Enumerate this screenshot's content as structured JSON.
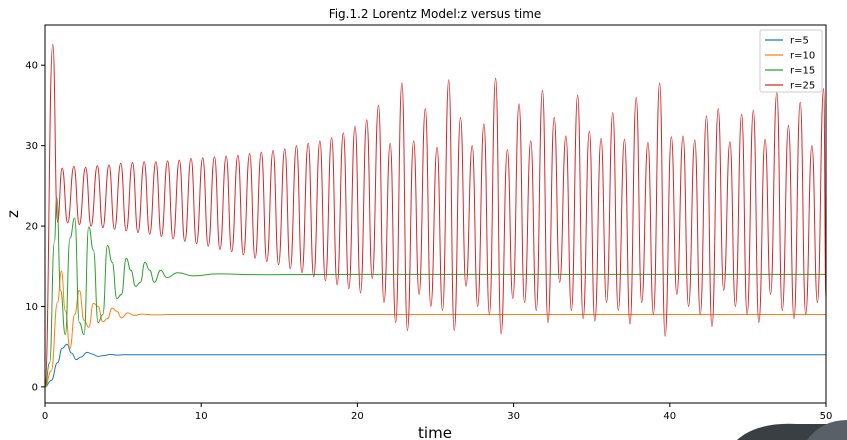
{
  "chart_data": {
    "type": "line",
    "title": "Fig.1.2 Lorentz Model:z versus time",
    "xlabel": "time",
    "ylabel": "z",
    "xlim": [
      0,
      50
    ],
    "ylim": [
      -2,
      45
    ],
    "xticks": [
      "0",
      "10",
      "20",
      "30",
      "40",
      "50"
    ],
    "yticks": [
      "0",
      "10",
      "20",
      "30",
      "40"
    ],
    "legend_position": "top-right",
    "grid": false,
    "series": [
      {
        "name": "r=5",
        "color": "#1f77b4",
        "x": [
          0,
          0.4,
          0.8,
          1.1,
          1.4,
          1.7,
          2.0,
          2.3,
          2.7,
          3.0,
          3.4,
          3.8,
          4.2,
          4.6,
          5.0,
          6.0,
          8.0,
          10,
          20,
          30,
          40,
          50
        ],
        "values": [
          0,
          0.8,
          3.0,
          4.8,
          5.3,
          4.2,
          3.4,
          3.7,
          4.3,
          4.1,
          3.8,
          3.9,
          4.05,
          3.95,
          4.0,
          4.0,
          4.0,
          4.0,
          4.0,
          4.0,
          4.0,
          4.0
        ]
      },
      {
        "name": "r=10",
        "color": "#ff7f0e",
        "x": [
          0,
          0.4,
          0.8,
          1.05,
          1.3,
          1.6,
          1.9,
          2.2,
          2.5,
          2.8,
          3.1,
          3.4,
          3.7,
          4.0,
          4.3,
          4.6,
          4.9,
          5.3,
          5.7,
          6.2,
          7.0,
          8.0,
          10,
          20,
          30,
          40,
          50
        ],
        "values": [
          0,
          2.0,
          10.5,
          14.4,
          9.5,
          4.8,
          9.0,
          12.0,
          8.3,
          7.4,
          10.4,
          10.0,
          8.1,
          8.5,
          9.8,
          9.4,
          8.6,
          9.2,
          8.9,
          9.05,
          8.95,
          9.0,
          9.0,
          9.0,
          9.0,
          9.0,
          9.0
        ]
      },
      {
        "name": "r=15",
        "color": "#2ca02c",
        "x": [
          0,
          0.3,
          0.6,
          0.75,
          1.0,
          1.3,
          1.6,
          1.9,
          2.2,
          2.5,
          2.8,
          3.1,
          3.4,
          3.7,
          4.0,
          4.3,
          4.6,
          4.9,
          5.2,
          5.5,
          5.8,
          6.1,
          6.4,
          6.7,
          7.0,
          7.4,
          7.8,
          8.5,
          9.5,
          11,
          14,
          20,
          30,
          40,
          50
        ],
        "values": [
          0,
          3.0,
          18.0,
          23.5,
          12.0,
          6.5,
          18.5,
          21.0,
          8.0,
          6.5,
          19.9,
          17.0,
          8.0,
          9.0,
          17.6,
          15.5,
          11.0,
          11.5,
          16.0,
          14.5,
          12.5,
          13.0,
          15.5,
          14.5,
          13.0,
          14.5,
          13.6,
          14.2,
          13.8,
          14.05,
          13.95,
          14.0,
          14.0,
          14.0,
          14.0
        ]
      },
      {
        "name": "r=25",
        "color": "#d62728",
        "peaks_x": [
          0.5,
          1.1,
          1.85,
          2.6,
          3.35,
          4.1,
          4.85,
          5.6,
          6.35,
          7.1,
          7.85,
          8.6,
          9.35,
          10.1,
          10.85,
          11.6,
          12.35,
          13.1,
          13.85,
          14.6,
          15.35,
          16.1,
          16.85,
          17.6,
          18.35,
          19.1,
          19.85,
          20.6,
          21.35,
          22.1,
          22.85,
          23.6,
          24.35,
          25.1,
          25.85,
          26.6,
          27.35,
          28.1,
          28.85,
          29.6,
          30.35,
          31.1,
          31.85,
          32.6,
          33.35,
          34.1,
          34.85,
          35.6,
          36.35,
          37.1,
          37.85,
          38.6,
          39.35,
          40.1,
          40.85,
          41.6,
          42.35,
          43.1,
          43.85,
          44.6,
          45.35,
          46.1,
          46.85,
          47.6,
          48.35,
          49.1,
          49.85
        ],
        "peaks": [
          42.6,
          27.2,
          27.4,
          27.3,
          27.5,
          27.6,
          27.8,
          27.9,
          28.0,
          28.0,
          28.1,
          28.2,
          28.4,
          28.5,
          28.6,
          28.7,
          28.8,
          29.0,
          29.2,
          29.4,
          29.6,
          30.0,
          30.3,
          30.6,
          31.0,
          31.6,
          32.4,
          33.2,
          35.0,
          30.3,
          37.8,
          30.6,
          34.6,
          29.8,
          38.2,
          33.5,
          30.0,
          32.7,
          38.4,
          29.5,
          35.2,
          30.6,
          36.9,
          33.5,
          31.2,
          36.3,
          31.8,
          30.9,
          34.1,
          30.8,
          36.0,
          30.4,
          37.8,
          31.1,
          31.2,
          30.7,
          33.7,
          34.6,
          30.5,
          33.9,
          34.4,
          30.8,
          36.6,
          32.5,
          35.4,
          30.0,
          37.1
        ],
        "troughs_x": [
          0,
          0.8,
          1.45,
          2.2,
          2.95,
          3.7,
          4.45,
          5.2,
          5.95,
          6.7,
          7.45,
          8.2,
          8.95,
          9.7,
          10.45,
          11.2,
          11.95,
          12.7,
          13.45,
          14.2,
          14.95,
          15.7,
          16.45,
          17.2,
          17.95,
          18.7,
          19.45,
          20.2,
          20.95,
          21.7,
          22.45,
          23.2,
          23.95,
          24.7,
          25.45,
          26.2,
          26.95,
          27.7,
          28.45,
          29.2,
          29.95,
          30.7,
          31.45,
          32.2,
          32.95,
          33.7,
          34.45,
          35.2,
          35.95,
          36.7,
          37.45,
          38.2,
          38.95,
          39.7,
          40.45,
          41.2,
          41.95,
          42.7,
          43.45,
          44.2,
          44.95,
          45.7,
          46.45,
          47.2,
          47.95,
          48.7,
          49.45,
          50
        ],
        "troughs": [
          0,
          20.5,
          20.4,
          20.2,
          20.0,
          19.8,
          19.6,
          19.4,
          19.2,
          19.0,
          18.7,
          18.4,
          18.1,
          17.8,
          17.5,
          17.1,
          16.8,
          16.4,
          16.0,
          15.6,
          15.2,
          14.7,
          14.2,
          13.7,
          13.2,
          12.7,
          12.2,
          11.7,
          13.5,
          10.5,
          8.0,
          7.0,
          11.5,
          10.0,
          9.5,
          7.0,
          12.5,
          10.0,
          9.0,
          6.6,
          11.0,
          10.5,
          9.5,
          8.0,
          13.0,
          9.5,
          8.5,
          8.2,
          10.5,
          9.5,
          7.8,
          10.5,
          9.0,
          6.3,
          11.5,
          10.0,
          9.0,
          7.5,
          12.0,
          10.0,
          9.0,
          8.0,
          11.5,
          9.5,
          8.5,
          9.0,
          10.5,
          10.7
        ]
      }
    ]
  }
}
